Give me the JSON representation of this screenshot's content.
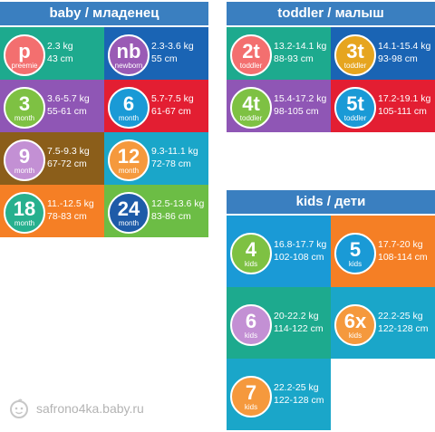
{
  "sections": {
    "baby": "baby / младенец",
    "toddler": "toddler / малыш",
    "kids": "kids / дети"
  },
  "baby": [
    {
      "big": "p",
      "small": "preemie",
      "weight": "2.3 kg",
      "height": "43 cm",
      "bg": "#1daa8e",
      "badge": "#f36f6f"
    },
    {
      "big": "nb",
      "small": "newborn",
      "weight": "2.3-3.6 kg",
      "height": "55 cm",
      "bg": "#1a64b4",
      "badge": "#9a5bb5"
    },
    {
      "big": "3",
      "small": "month",
      "weight": "3.6-5.7 kg",
      "height": "55-61 cm",
      "bg": "#8f56b5",
      "badge": "#7ec143"
    },
    {
      "big": "6",
      "small": "month",
      "weight": "5.7-7.5 kg",
      "height": "61-67 cm",
      "bg": "#e31e32",
      "badge": "#1a9ad6"
    },
    {
      "big": "9",
      "small": "month",
      "weight": "7.5-9.3 kg",
      "height": "67-72 cm",
      "bg": "#8b5e1a",
      "badge": "#c390d4"
    },
    {
      "big": "12",
      "small": "month",
      "weight": "9.3-11.1 kg",
      "height": "72-78 cm",
      "bg": "#1aa6c9",
      "badge": "#f5993d"
    },
    {
      "big": "18",
      "small": "month",
      "weight": "11.-12.5 kg",
      "height": "78-83 cm",
      "bg": "#f57f25",
      "badge": "#27b08e"
    },
    {
      "big": "24",
      "small": "month",
      "weight": "12.5-13.6 kg",
      "height": "83-86 cm",
      "bg": "#6cbd45",
      "badge": "#1e5ba8"
    }
  ],
  "toddler": [
    {
      "big": "2t",
      "small": "toddler",
      "weight": "13.2-14.1 kg",
      "height": "88-93 cm",
      "bg": "#1daa8e",
      "badge": "#f36f6f"
    },
    {
      "big": "3t",
      "small": "toddler",
      "weight": "14.1-15.4 kg",
      "height": "93-98 cm",
      "bg": "#1a64b4",
      "badge": "#e6a51f"
    },
    {
      "big": "4t",
      "small": "toddler",
      "weight": "15.4-17.2 kg",
      "height": "98-105 cm",
      "bg": "#8f56b5",
      "badge": "#7ec143"
    },
    {
      "big": "5t",
      "small": "toddler",
      "weight": "17.2-19.1 kg",
      "height": "105-111 cm",
      "bg": "#e31e32",
      "badge": "#1a9ad6"
    }
  ],
  "kids": [
    {
      "big": "4",
      "small": "kids",
      "weight": "16.8-17.7 kg",
      "height": "102-108 cm",
      "bg": "#1a9ad6",
      "badge": "#7ec143"
    },
    {
      "big": "5",
      "small": "kids",
      "weight": "17.7-20 kg",
      "height": "108-114 cm",
      "bg": "#f57f25",
      "badge": "#1a9ad6"
    },
    {
      "big": "6",
      "small": "kids",
      "weight": "20-22.2 kg",
      "height": "114-122 cm",
      "bg": "#1daa8e",
      "badge": "#c390d4"
    },
    {
      "big": "6x",
      "small": "kids",
      "weight": "22.2-25 kg",
      "height": "122-128 cm",
      "bg": "#1aa6c9",
      "badge": "#f5993d"
    },
    {
      "big": "7",
      "small": "kids",
      "weight": "22.2-25 kg",
      "height": "122-128 cm",
      "bg": "#1aa6c9",
      "badge": "#f5993d"
    }
  ],
  "watermark": "safrono4ka.baby.ru"
}
